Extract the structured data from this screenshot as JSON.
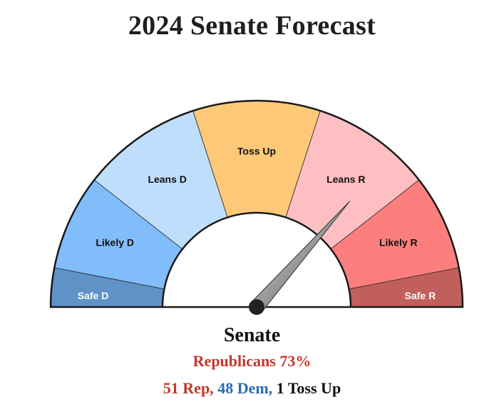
{
  "title": "2024 Senate Forecast",
  "colors": {
    "safe_d": "#5f92c6",
    "likely_d": "#82bdfb",
    "leans_d": "#bfdefb",
    "toss_up": "#fdc978",
    "leans_r": "#fdbfc1",
    "likely_r": "#fd7f7d",
    "safe_r": "#c15f5d",
    "rep_text": "#c0392b",
    "dem_text": "#2b6cb0"
  },
  "chart_data": {
    "type": "gauge",
    "segments": [
      {
        "label": "Safe D",
        "start_deg": 0,
        "end_deg": 11,
        "color": "#5f92c6",
        "light_text": true
      },
      {
        "label": "Likely D",
        "start_deg": 11,
        "end_deg": 38,
        "color": "#82bdfb",
        "light_text": false
      },
      {
        "label": "Leans D",
        "start_deg": 38,
        "end_deg": 72,
        "color": "#bfdefb",
        "light_text": false
      },
      {
        "label": "Toss Up",
        "start_deg": 72,
        "end_deg": 108,
        "color": "#fdc978",
        "light_text": false
      },
      {
        "label": "Leans R",
        "start_deg": 108,
        "end_deg": 142,
        "color": "#fdbfc1",
        "light_text": false
      },
      {
        "label": "Likely R",
        "start_deg": 142,
        "end_deg": 169,
        "color": "#fd7f7d",
        "light_text": false
      },
      {
        "label": "Safe R",
        "start_deg": 169,
        "end_deg": 180,
        "color": "#c15f5d",
        "light_text": true
      }
    ],
    "needle_value_pct": 73
  },
  "summary": {
    "chamber": "Senate",
    "probability": "Republicans 73%",
    "rep_seats": "51 Rep,",
    "dem_seats": "48 Dem,",
    "toss_up_seats": "1 Toss Up"
  }
}
